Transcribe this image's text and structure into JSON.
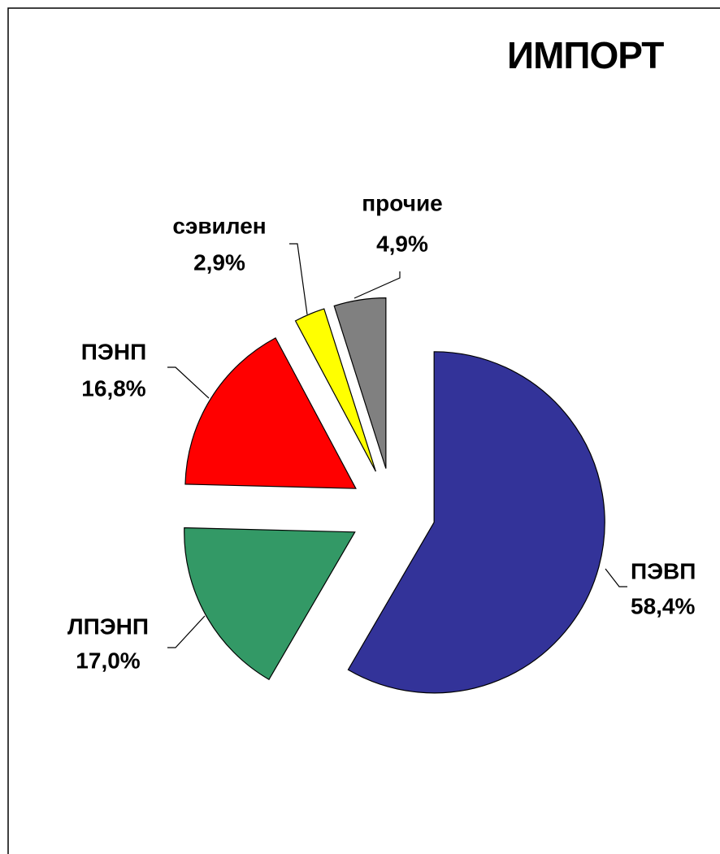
{
  "chart_data": {
    "type": "pie",
    "title": "ИМПОРТ",
    "categories": [
      "ПЭВП",
      "ЛПЭНП",
      "ПЭНП",
      "сэвилен",
      "прочие"
    ],
    "values": [
      58.4,
      17.0,
      16.8,
      2.9,
      4.9
    ],
    "value_labels": [
      "58,4%",
      "17,0%",
      "16,8%",
      "2,9%",
      "4,9%"
    ],
    "colors": [
      "#333399",
      "#339966",
      "#ff0000",
      "#ffff00",
      "#808080"
    ]
  }
}
